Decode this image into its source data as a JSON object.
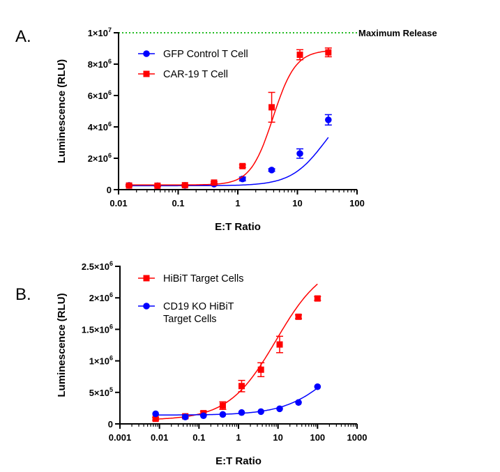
{
  "chart_data": [
    {
      "panel": "A.",
      "type": "scatter",
      "xscale": "log",
      "xlim": [
        0.01,
        100
      ],
      "ylim": [
        0,
        10000000
      ],
      "xlabel": "E:T Ratio",
      "ylabel": "Luminescence (RLU)",
      "xticks": [
        {
          "v": 0.01,
          "label": "0.01"
        },
        {
          "v": 0.1,
          "label": "0.1"
        },
        {
          "v": 1,
          "label": "1"
        },
        {
          "v": 10,
          "label": "10"
        },
        {
          "v": 100,
          "label": "100"
        }
      ],
      "yticks": [
        {
          "v": 0,
          "base": "0",
          "exp": ""
        },
        {
          "v": 2000000,
          "base": "2×10",
          "exp": "6"
        },
        {
          "v": 4000000,
          "base": "4×10",
          "exp": "6"
        },
        {
          "v": 6000000,
          "base": "6×10",
          "exp": "6"
        },
        {
          "v": 8000000,
          "base": "8×10",
          "exp": "6"
        },
        {
          "v": 10000000,
          "base": "1×10",
          "exp": "7"
        }
      ],
      "reference_line": {
        "y": 10000000,
        "label": "Maximum Release",
        "color": "#22bb22"
      },
      "legend_position": "top-left",
      "series": [
        {
          "name": "GFP Control T Cell",
          "color": "#0000ff",
          "marker": "circle",
          "fit": {
            "bottom": 250000,
            "top": 6000000,
            "ec50": 30,
            "hill": 1.5
          },
          "points": [
            {
              "x": 0.015,
              "y": 270000,
              "err": 60000
            },
            {
              "x": 0.045,
              "y": 250000,
              "err": 50000
            },
            {
              "x": 0.13,
              "y": 270000,
              "err": 50000
            },
            {
              "x": 0.4,
              "y": 350000,
              "err": 60000
            },
            {
              "x": 1.2,
              "y": 680000,
              "err": 120000
            },
            {
              "x": 3.7,
              "y": 1250000,
              "err": 80000
            },
            {
              "x": 11,
              "y": 2300000,
              "err": 300000
            },
            {
              "x": 33,
              "y": 4450000,
              "err": 330000
            }
          ]
        },
        {
          "name": "CAR-19 T Cell",
          "color": "#ff0000",
          "marker": "square",
          "fit": {
            "bottom": 300000,
            "top": 8900000,
            "ec50": 3.9,
            "hill": 2.3
          },
          "points": [
            {
              "x": 0.015,
              "y": 260000,
              "err": 40000
            },
            {
              "x": 0.045,
              "y": 250000,
              "err": 40000
            },
            {
              "x": 0.13,
              "y": 280000,
              "err": 40000
            },
            {
              "x": 0.4,
              "y": 450000,
              "err": 60000
            },
            {
              "x": 1.2,
              "y": 1500000,
              "err": 80000
            },
            {
              "x": 3.7,
              "y": 5250000,
              "err": 950000
            },
            {
              "x": 11,
              "y": 8600000,
              "err": 320000
            },
            {
              "x": 33,
              "y": 8750000,
              "err": 280000
            }
          ]
        }
      ]
    },
    {
      "panel": "B.",
      "type": "scatter",
      "xscale": "log",
      "xlim": [
        0.001,
        1000
      ],
      "ylim": [
        0,
        2500000
      ],
      "xlabel": "E:T Ratio",
      "ylabel": "Luminescence (RLU)",
      "xticks": [
        {
          "v": 0.001,
          "label": "0.001"
        },
        {
          "v": 0.01,
          "label": "0.01"
        },
        {
          "v": 0.1,
          "label": "0.1"
        },
        {
          "v": 1,
          "label": "1"
        },
        {
          "v": 10,
          "label": "10"
        },
        {
          "v": 100,
          "label": "100"
        },
        {
          "v": 1000,
          "label": "1000"
        }
      ],
      "yticks": [
        {
          "v": 0,
          "base": "0",
          "exp": ""
        },
        {
          "v": 500000,
          "base": "5×10",
          "exp": "5"
        },
        {
          "v": 1000000,
          "base": "1×10",
          "exp": "6"
        },
        {
          "v": 1500000,
          "base": "1.5×10",
          "exp": "6"
        },
        {
          "v": 2000000,
          "base": "2×10",
          "exp": "6"
        },
        {
          "v": 2500000,
          "base": "2.5×10",
          "exp": "6"
        }
      ],
      "legend_position": "top-left",
      "series": [
        {
          "name": "HiBiT Target Cells",
          "name_lines": [
            "HiBiT Target Cells"
          ],
          "color": "#ff0000",
          "marker": "square",
          "fit": {
            "bottom": 60000,
            "top": 2600000,
            "ec50": 9,
            "hill": 0.72
          },
          "points": [
            {
              "x": 0.008,
              "y": 80000,
              "err": 20000
            },
            {
              "x": 0.045,
              "y": 120000,
              "err": 25000
            },
            {
              "x": 0.13,
              "y": 170000,
              "err": 30000
            },
            {
              "x": 0.4,
              "y": 290000,
              "err": 60000
            },
            {
              "x": 1.2,
              "y": 600000,
              "err": 90000
            },
            {
              "x": 3.7,
              "y": 860000,
              "err": 110000
            },
            {
              "x": 11,
              "y": 1260000,
              "err": 130000
            },
            {
              "x": 33,
              "y": 1700000,
              "err": 30000
            },
            {
              "x": 100,
              "y": 1990000,
              "err": 30000
            }
          ]
        },
        {
          "name": "CD19 KO HiBiT Target Cells",
          "name_lines": [
            "CD19 KO HiBiT",
            "Target Cells"
          ],
          "color": "#0000ff",
          "marker": "circle",
          "fit": {
            "bottom": 140000,
            "top": 1500000,
            "ec50": 300,
            "hill": 0.7
          },
          "points": [
            {
              "x": 0.008,
              "y": 160000,
              "err": 0
            },
            {
              "x": 0.045,
              "y": 110000,
              "err": 0
            },
            {
              "x": 0.13,
              "y": 130000,
              "err": 0
            },
            {
              "x": 0.4,
              "y": 150000,
              "err": 0
            },
            {
              "x": 1.2,
              "y": 180000,
              "err": 0
            },
            {
              "x": 3.7,
              "y": 195000,
              "err": 0
            },
            {
              "x": 11,
              "y": 240000,
              "err": 0
            },
            {
              "x": 33,
              "y": 340000,
              "err": 0
            },
            {
              "x": 100,
              "y": 590000,
              "err": 0
            }
          ]
        }
      ]
    }
  ]
}
